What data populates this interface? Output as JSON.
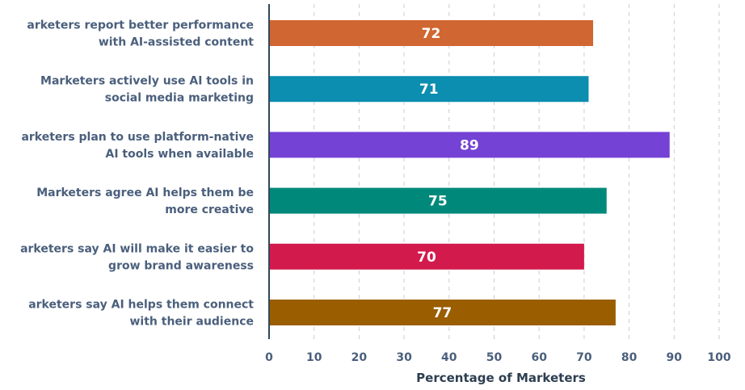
{
  "chart_data": {
    "type": "bar",
    "orientation": "horizontal",
    "title": "",
    "xlabel": "Percentage of Marketers",
    "ylabel": "",
    "xlim": [
      0,
      100
    ],
    "xticks": [
      0,
      10,
      20,
      30,
      40,
      50,
      60,
      70,
      80,
      90,
      100
    ],
    "grid": true,
    "categories": [
      {
        "lines": [
          "arketers report better performance",
          "with AI-assisted content"
        ]
      },
      {
        "lines": [
          "Marketers actively use AI tools in",
          "social media marketing"
        ]
      },
      {
        "lines": [
          "arketers plan to use platform-native",
          "AI tools when available"
        ]
      },
      {
        "lines": [
          "Marketers agree AI helps them be",
          "more creative"
        ]
      },
      {
        "lines": [
          "arketers say AI will make it easier to",
          "grow brand awareness"
        ]
      },
      {
        "lines": [
          "arketers say AI helps them connect",
          "with their audience"
        ]
      }
    ],
    "values": [
      72,
      71,
      89,
      75,
      70,
      77
    ],
    "colors": [
      "#d06631",
      "#0b8eb0",
      "#7442d4",
      "#00897b",
      "#d31a4d",
      "#9a5d00"
    ]
  }
}
